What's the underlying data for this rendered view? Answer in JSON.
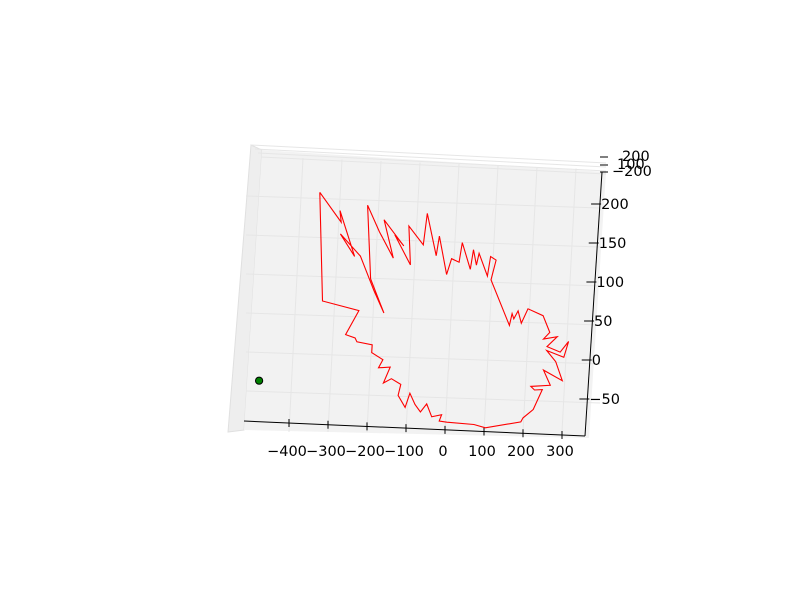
{
  "chart_data": {
    "type": "line",
    "projection": "3d",
    "title": "",
    "xlabel": "",
    "ylabel": "",
    "zlabel": "",
    "grid": true,
    "pane_color": "#f2f2f2",
    "grid_color": "#e6e6e6",
    "line_color": "#ff0000",
    "marker_color": "#008000",
    "x_ticks": [
      "−400",
      "−300",
      "−200",
      "−100",
      "0",
      "100",
      "200",
      "300"
    ],
    "y_ticks": [
      "−50",
      "0",
      "50",
      "100",
      "150",
      "200"
    ],
    "z_ticks": [
      "−200",
      "100",
      "200"
    ],
    "series": [
      {
        "type": "line",
        "x": [
          -355,
          -295,
          -300,
          -255,
          -295,
          -240,
          -200,
          -170,
          -210,
          -230,
          -195,
          -155,
          -185,
          -130,
          -155,
          -110,
          -120,
          -80,
          -75,
          -45,
          -40,
          -15,
          -5,
          15,
          20,
          45,
          50,
          60,
          65,
          90,
          95,
          110,
          100,
          155,
          160,
          165,
          175,
          185,
          200,
          240,
          260,
          245,
          280,
          255,
          290,
          310,
          300,
          255,
          280,
          300,
          250,
          270,
          220,
          230,
          250,
          230,
          205,
          200,
          110,
          80,
          10,
          -10,
          -5,
          -30,
          -45,
          -60,
          -75,
          -90,
          -100,
          -120,
          -115,
          -140,
          -160,
          -145,
          -175,
          -165,
          -195,
          -195,
          -235,
          -240,
          -265,
          -235,
          -330,
          -355
        ],
        "y": [
          225,
          185,
          200,
          140,
          170,
          140,
          95,
          65,
          110,
          205,
          170,
          135,
          185,
          150,
          165,
          125,
          175,
          150,
          190,
          135,
          160,
          110,
          130,
          125,
          150,
          115,
          140,
          120,
          135,
          105,
          130,
          125,
          100,
          40,
          55,
          48,
          58,
          42,
          60,
          50,
          28,
          20,
          22,
          10,
          2,
          15,
          -5,
          5,
          -10,
          -35,
          -20,
          -40,
          -40,
          -45,
          -45,
          -70,
          -80,
          -85,
          -90,
          -85,
          -80,
          -78,
          -70,
          -72,
          -55,
          -65,
          -55,
          -40,
          -58,
          -42,
          -28,
          -20,
          -25,
          -5,
          -5,
          5,
          15,
          25,
          30,
          35,
          40,
          70,
          85,
          225
        ]
      },
      {
        "type": "scatter",
        "x": [
          -480
        ],
        "y": [
          -13
        ]
      }
    ]
  }
}
